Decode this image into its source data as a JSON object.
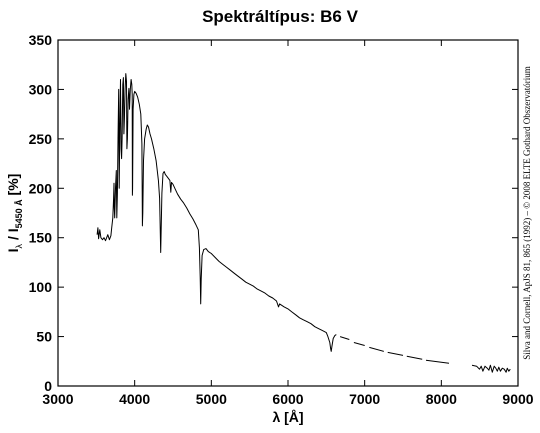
{
  "chart_data": {
    "type": "line",
    "title": "Spektráltípus: B6 V",
    "xlabel": "λ [Å]",
    "ylabel": {
      "main": "I",
      "main_sub": "λ",
      "sep": " / I",
      "ref_sub": "5450 Å",
      "unit": " [%]"
    },
    "credit": "Silva and Cornell, ApJS 81, 865 (1992)  –  © 2008 ELTE Gothard Obszervatórium",
    "xlim": [
      3000,
      9000
    ],
    "ylim": [
      0,
      350
    ],
    "xticks": [
      3000,
      4000,
      5000,
      6000,
      7000,
      8000,
      9000
    ],
    "yticks": [
      0,
      50,
      100,
      150,
      200,
      250,
      300,
      350
    ],
    "xtick_labels": [
      "3000",
      "4000",
      "5000",
      "6000",
      "7000",
      "8000",
      "9000"
    ],
    "ytick_labels": [
      "0",
      "50",
      "100",
      "150",
      "200",
      "250",
      "300",
      "350"
    ],
    "grid": false,
    "series": [
      {
        "color": "#000000",
        "segments": [
          [
            [
              3510,
              153
            ],
            [
              3520,
              160
            ],
            [
              3530,
              149
            ],
            [
              3545,
              158
            ],
            [
              3560,
              150
            ],
            [
              3580,
              148
            ],
            [
              3600,
              150
            ],
            [
              3620,
              147
            ],
            [
              3650,
              153
            ],
            [
              3670,
              148
            ],
            [
              3690,
              152
            ],
            [
              3700,
              160
            ],
            [
              3715,
              170
            ],
            [
              3725,
              190
            ],
            [
              3730,
              205
            ],
            [
              3735,
              180
            ],
            [
              3740,
              170
            ],
            [
              3750,
              200
            ],
            [
              3760,
              218
            ],
            [
              3767,
              170
            ],
            [
              3775,
              195
            ],
            [
              3783,
              250
            ],
            [
              3792,
              300
            ],
            [
              3798,
              200
            ],
            [
              3806,
              260
            ],
            [
              3815,
              310
            ],
            [
              3823,
              240
            ],
            [
              3830,
              230
            ],
            [
              3836,
              250
            ],
            [
              3845,
              305
            ],
            [
              3853,
              312
            ],
            [
              3860,
              255
            ],
            [
              3866,
              270
            ],
            [
              3875,
              300
            ],
            [
              3885,
              316
            ],
            [
              3893,
              308
            ],
            [
              3899,
              240
            ],
            [
              3905,
              250
            ],
            [
              3915,
              290
            ],
            [
              3925,
              301
            ],
            [
              3933,
              280
            ],
            [
              3943,
              300
            ],
            [
              3953,
              310
            ],
            [
              3962,
              305
            ],
            [
              3968,
              295
            ],
            [
              3970,
              193
            ],
            [
              3973,
              200
            ],
            [
              3980,
              280
            ],
            [
              3990,
              295
            ],
            [
              4000,
              298
            ],
            [
              4020,
              296
            ],
            [
              4040,
              292
            ],
            [
              4060,
              285
            ],
            [
              4080,
              275
            ],
            [
              4095,
              245
            ],
            [
              4101,
              162
            ],
            [
              4106,
              175
            ],
            [
              4115,
              228
            ],
            [
              4130,
              250
            ],
            [
              4150,
              260
            ],
            [
              4165,
              264
            ],
            [
              4180,
              262
            ],
            [
              4200,
              255
            ],
            [
              4220,
              250
            ],
            [
              4250,
              240
            ],
            [
              4280,
              228
            ],
            [
              4310,
              208
            ],
            [
              4325,
              190
            ],
            [
              4340,
              135
            ],
            [
              4348,
              165
            ],
            [
              4355,
              195
            ],
            [
              4370,
              215
            ],
            [
              4385,
              217
            ],
            [
              4400,
              214
            ],
            [
              4420,
              212
            ],
            [
              4440,
              210
            ],
            [
              4460,
              208
            ],
            [
              4471,
              196
            ],
            [
              4480,
              206
            ],
            [
              4500,
              204
            ],
            [
              4530,
              199
            ],
            [
              4560,
              194
            ],
            [
              4600,
              189
            ],
            [
              4640,
              185
            ],
            [
              4680,
              180
            ],
            [
              4720,
              174
            ],
            [
              4760,
              169
            ],
            [
              4800,
              163
            ],
            [
              4830,
              158
            ],
            [
              4845,
              140
            ],
            [
              4855,
              110
            ],
            [
              4861,
              83
            ],
            [
              4868,
              108
            ],
            [
              4880,
              132
            ],
            [
              4900,
              138
            ],
            [
              4930,
              139
            ],
            [
              4960,
              136
            ],
            [
              5000,
              134
            ],
            [
              5050,
              130
            ],
            [
              5100,
              126
            ],
            [
              5150,
              123
            ],
            [
              5200,
              120
            ],
            [
              5250,
              117
            ],
            [
              5300,
              114
            ],
            [
              5350,
              111
            ],
            [
              5400,
              108
            ],
            [
              5450,
              105
            ],
            [
              5500,
              103
            ],
            [
              5550,
              101
            ],
            [
              5600,
              98
            ],
            [
              5650,
              96
            ],
            [
              5700,
              94
            ],
            [
              5750,
              91
            ],
            [
              5800,
              89
            ],
            [
              5850,
              86
            ],
            [
              5876,
              80
            ],
            [
              5890,
              83
            ],
            [
              5950,
              80
            ],
            [
              6000,
              78
            ],
            [
              6050,
              75
            ],
            [
              6100,
              72
            ],
            [
              6150,
              69
            ],
            [
              6200,
              67
            ],
            [
              6250,
              65
            ],
            [
              6300,
              63
            ],
            [
              6350,
              60
            ],
            [
              6400,
              58
            ],
            [
              6450,
              56
            ],
            [
              6500,
              54
            ],
            [
              6520,
              50
            ],
            [
              6545,
              44
            ],
            [
              6555,
              38
            ],
            [
              6563,
              35
            ],
            [
              6572,
              40
            ],
            [
              6590,
              48
            ],
            [
              6610,
              51
            ],
            [
              6630,
              52
            ]
          ],
          [
            [
              6680,
              50
            ],
            [
              6800,
              47
            ]
          ],
          [
            [
              6860,
              44
            ],
            [
              7000,
              41
            ]
          ],
          [
            [
              7060,
              39
            ],
            [
              7250,
              35
            ]
          ],
          [
            [
              7300,
              34
            ],
            [
              7500,
              31
            ]
          ],
          [
            [
              7550,
              30
            ],
            [
              7750,
              27
            ]
          ],
          [
            [
              7800,
              26
            ],
            [
              8100,
              23
            ]
          ],
          [
            [
              8400,
              21
            ],
            [
              8460,
              20
            ],
            [
              8498,
              17
            ],
            [
              8520,
              20
            ],
            [
              8542,
              15
            ],
            [
              8570,
              20
            ],
            [
              8600,
              18
            ],
            [
              8620,
              16
            ],
            [
              8640,
              21
            ],
            [
              8665,
              14
            ],
            [
              8690,
              20
            ],
            [
              8710,
              18
            ],
            [
              8730,
              15
            ],
            [
              8750,
              19
            ],
            [
              8770,
              15
            ],
            [
              8795,
              18
            ],
            [
              8820,
              17
            ],
            [
              8845,
              14
            ],
            [
              8860,
              18
            ],
            [
              8880,
              15
            ],
            [
              8900,
              17
            ]
          ]
        ]
      }
    ]
  }
}
